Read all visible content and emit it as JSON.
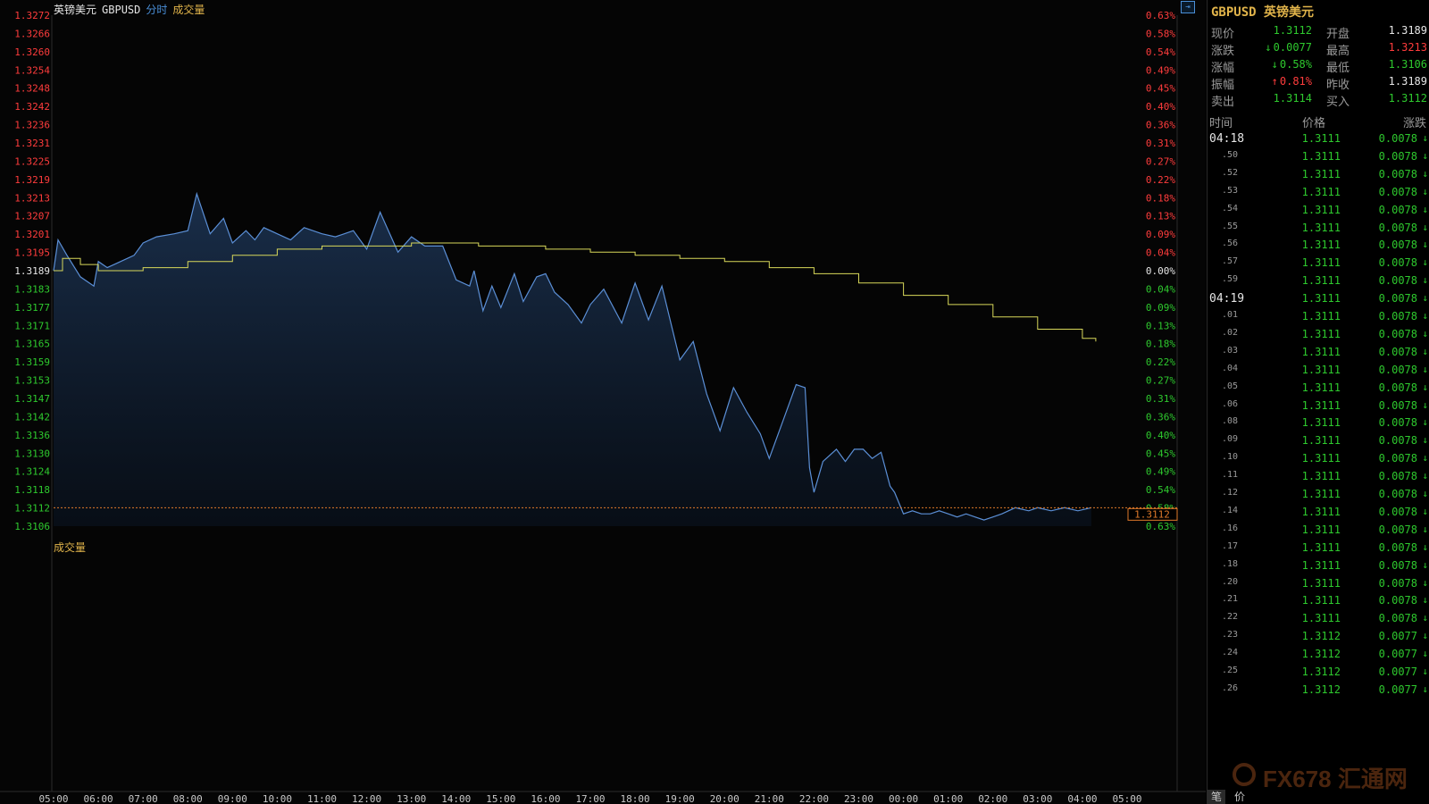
{
  "header": {
    "name_cn": "英镑美元",
    "symbol": "GBPUSD",
    "mode": "分时",
    "volume_tab": "成交量",
    "colors": {
      "name": "#e6e6e6",
      "mode": "#4a8fd8",
      "volume": "#e0b34a"
    }
  },
  "volume_label": "成交量",
  "current_price_tag": "1.3112",
  "chart_data": {
    "type": "line",
    "title": "",
    "y_labels_left": [
      "1.3272",
      "1.3266",
      "1.3260",
      "1.3254",
      "1.3248",
      "1.3242",
      "1.3236",
      "1.3231",
      "1.3225",
      "1.3219",
      "1.3213",
      "1.3207",
      "1.3201",
      "1.3195",
      "1.3189",
      "1.3183",
      "1.3177",
      "1.3171",
      "1.3165",
      "1.3159",
      "1.3153",
      "1.3147",
      "1.3142",
      "1.3136",
      "1.3130",
      "1.3124",
      "1.3118",
      "1.3112",
      "1.3106"
    ],
    "y_labels_right": [
      "0.63%",
      "0.58%",
      "0.54%",
      "0.49%",
      "0.45%",
      "0.40%",
      "0.36%",
      "0.31%",
      "0.27%",
      "0.22%",
      "0.18%",
      "0.13%",
      "0.09%",
      "0.04%",
      "0.00%",
      "0.04%",
      "0.09%",
      "0.13%",
      "0.18%",
      "0.22%",
      "0.27%",
      "0.31%",
      "0.36%",
      "0.40%",
      "0.45%",
      "0.49%",
      "0.54%",
      "0.58%",
      "0.63%"
    ],
    "x_labels": [
      "05:00",
      "06:00",
      "07:00",
      "08:00",
      "09:00",
      "10:00",
      "11:00",
      "12:00",
      "13:00",
      "14:00",
      "15:00",
      "16:00",
      "17:00",
      "18:00",
      "19:00",
      "20:00",
      "21:00",
      "22:00",
      "23:00",
      "00:00",
      "01:00",
      "02:00",
      "03:00",
      "04:00",
      "05:00"
    ],
    "ylim": [
      1.3106,
      1.3272
    ],
    "prev_close": 1.3189,
    "last_price": 1.3112,
    "series": [
      {
        "name": "",
        "color": "#5b8fd6",
        "x_hours": [
          0,
          0.1,
          0.3,
          0.6,
          0.9,
          1.0,
          1.2,
          1.5,
          1.8,
          2.0,
          2.3,
          2.7,
          3.0,
          3.2,
          3.5,
          3.8,
          4.0,
          4.3,
          4.5,
          4.7,
          5.0,
          5.3,
          5.6,
          6.0,
          6.3,
          6.7,
          7.0,
          7.3,
          7.7,
          8.0,
          8.3,
          8.7,
          9.0,
          9.3,
          9.4,
          9.6,
          9.8,
          10.0,
          10.3,
          10.5,
          10.8,
          11.0,
          11.2,
          11.5,
          11.8,
          12.0,
          12.3,
          12.7,
          13.0,
          13.3,
          13.6,
          14.0,
          14.3,
          14.6,
          14.9,
          15.2,
          15.5,
          15.8,
          16.0,
          16.3,
          16.6,
          16.8,
          16.9,
          17.0,
          17.2,
          17.5,
          17.7,
          17.9,
          18.1,
          18.3,
          18.5,
          18.7,
          18.8,
          19.0,
          19.2,
          19.4,
          19.6,
          19.8,
          20.0,
          20.2,
          20.4,
          20.6,
          20.8,
          21.0,
          21.2,
          21.5,
          21.8,
          22.0,
          22.3,
          22.6,
          22.9,
          23.2
        ],
        "values": [
          1.3189,
          1.3199,
          1.3194,
          1.3187,
          1.3184,
          1.3192,
          1.319,
          1.3192,
          1.3194,
          1.3198,
          1.32,
          1.3201,
          1.3202,
          1.3214,
          1.3201,
          1.3206,
          1.3198,
          1.3202,
          1.3199,
          1.3203,
          1.3201,
          1.3199,
          1.3203,
          1.3201,
          1.32,
          1.3202,
          1.3196,
          1.3208,
          1.3195,
          1.32,
          1.3197,
          1.3197,
          1.3186,
          1.3184,
          1.3189,
          1.3176,
          1.3184,
          1.3177,
          1.3188,
          1.3179,
          1.3187,
          1.3188,
          1.3182,
          1.3178,
          1.3172,
          1.3178,
          1.3183,
          1.3172,
          1.3185,
          1.3173,
          1.3184,
          1.316,
          1.3166,
          1.3149,
          1.3137,
          1.3151,
          1.3143,
          1.3136,
          1.3128,
          1.314,
          1.3152,
          1.3151,
          1.3125,
          1.3117,
          1.3127,
          1.3131,
          1.3127,
          1.3131,
          1.3131,
          1.3128,
          1.313,
          1.3119,
          1.3117,
          1.311,
          1.3111,
          1.311,
          1.311,
          1.3111,
          1.311,
          1.3109,
          1.311,
          1.3109,
          1.3108,
          1.3109,
          1.311,
          1.3112,
          1.3111,
          1.3112,
          1.3111,
          1.3112,
          1.3111,
          1.3112
        ]
      },
      {
        "name": "",
        "color": "#d8d85a",
        "x_hours": [
          0,
          0.2,
          0.6,
          1.0,
          2.0,
          3.0,
          4.0,
          5.0,
          6.0,
          7.0,
          8.0,
          9.0,
          9.5,
          10.0,
          11.0,
          12.0,
          13.0,
          14.0,
          15.0,
          16.0,
          17.0,
          18.0,
          19.0,
          20.0,
          21.0,
          22.0,
          23.0,
          23.3
        ],
        "values": [
          1.3189,
          1.3193,
          1.3191,
          1.3189,
          1.319,
          1.3192,
          1.3194,
          1.3196,
          1.3197,
          1.3197,
          1.3198,
          1.3198,
          1.3197,
          1.3197,
          1.3196,
          1.3195,
          1.3194,
          1.3193,
          1.3192,
          1.319,
          1.3188,
          1.3185,
          1.3181,
          1.3178,
          1.3174,
          1.317,
          1.3167,
          1.3166
        ]
      }
    ],
    "grid": false
  },
  "panel": {
    "title": "GBPUSD 英镑美元",
    "quotes": [
      {
        "l1": "现价",
        "v1": "1.3112",
        "c1": "#2ec92e",
        "a1": "",
        "l2": "开盘",
        "v2": "1.3189",
        "c2": "#e6e6e6"
      },
      {
        "l1": "涨跌",
        "v1": "0.0077",
        "c1": "#2ec92e",
        "a1": "down",
        "l2": "最高",
        "v2": "1.3213",
        "c2": "#ff3c3c"
      },
      {
        "l1": "涨幅",
        "v1": "0.58%",
        "c1": "#2ec92e",
        "a1": "down",
        "l2": "最低",
        "v2": "1.3106",
        "c2": "#2ec92e"
      },
      {
        "l1": "振幅",
        "v1": "0.81%",
        "c1": "#ff3c3c",
        "a1": "up",
        "l2": "昨收",
        "v2": "1.3189",
        "c2": "#e6e6e6"
      },
      {
        "l1": "卖出",
        "v1": "1.3114",
        "c1": "#2ec92e",
        "a1": "",
        "l2": "买入",
        "v2": "1.3112",
        "c2": "#2ec92e"
      }
    ],
    "columns": {
      "time": "时间",
      "price": "价格",
      "change": "涨跌"
    },
    "ticks": [
      {
        "time": "04:18",
        "big": true,
        "price": "1.3111",
        "chg": "0.0078"
      },
      {
        "time": ".50",
        "price": "1.3111",
        "chg": "0.0078"
      },
      {
        "time": ".52",
        "price": "1.3111",
        "chg": "0.0078"
      },
      {
        "time": ".53",
        "price": "1.3111",
        "chg": "0.0078"
      },
      {
        "time": ".54",
        "price": "1.3111",
        "chg": "0.0078"
      },
      {
        "time": ".55",
        "price": "1.3111",
        "chg": "0.0078"
      },
      {
        "time": ".56",
        "price": "1.3111",
        "chg": "0.0078"
      },
      {
        "time": ".57",
        "price": "1.3111",
        "chg": "0.0078"
      },
      {
        "time": ".59",
        "price": "1.3111",
        "chg": "0.0078"
      },
      {
        "time": "04:19",
        "big": true,
        "price": "1.3111",
        "chg": "0.0078"
      },
      {
        "time": ".01",
        "price": "1.3111",
        "chg": "0.0078"
      },
      {
        "time": ".02",
        "price": "1.3111",
        "chg": "0.0078"
      },
      {
        "time": ".03",
        "price": "1.3111",
        "chg": "0.0078"
      },
      {
        "time": ".04",
        "price": "1.3111",
        "chg": "0.0078"
      },
      {
        "time": ".05",
        "price": "1.3111",
        "chg": "0.0078"
      },
      {
        "time": ".06",
        "price": "1.3111",
        "chg": "0.0078"
      },
      {
        "time": ".08",
        "price": "1.3111",
        "chg": "0.0078"
      },
      {
        "time": ".09",
        "price": "1.3111",
        "chg": "0.0078"
      },
      {
        "time": ".10",
        "price": "1.3111",
        "chg": "0.0078"
      },
      {
        "time": ".11",
        "price": "1.3111",
        "chg": "0.0078"
      },
      {
        "time": ".12",
        "price": "1.3111",
        "chg": "0.0078"
      },
      {
        "time": ".14",
        "price": "1.3111",
        "chg": "0.0078"
      },
      {
        "time": ".16",
        "price": "1.3111",
        "chg": "0.0078"
      },
      {
        "time": ".17",
        "price": "1.3111",
        "chg": "0.0078"
      },
      {
        "time": ".18",
        "price": "1.3111",
        "chg": "0.0078"
      },
      {
        "time": ".20",
        "price": "1.3111",
        "chg": "0.0078"
      },
      {
        "time": ".21",
        "price": "1.3111",
        "chg": "0.0078"
      },
      {
        "time": ".22",
        "price": "1.3111",
        "chg": "0.0078"
      },
      {
        "time": ".23",
        "price": "1.3112",
        "chg": "0.0077"
      },
      {
        "time": ".24",
        "price": "1.3112",
        "chg": "0.0077"
      },
      {
        "time": ".25",
        "price": "1.3112",
        "chg": "0.0077"
      },
      {
        "time": ".26",
        "price": "1.3112",
        "chg": "0.0077"
      }
    ],
    "logo_text": "FX678 汇通网",
    "tabs": [
      "笔",
      "价"
    ]
  }
}
